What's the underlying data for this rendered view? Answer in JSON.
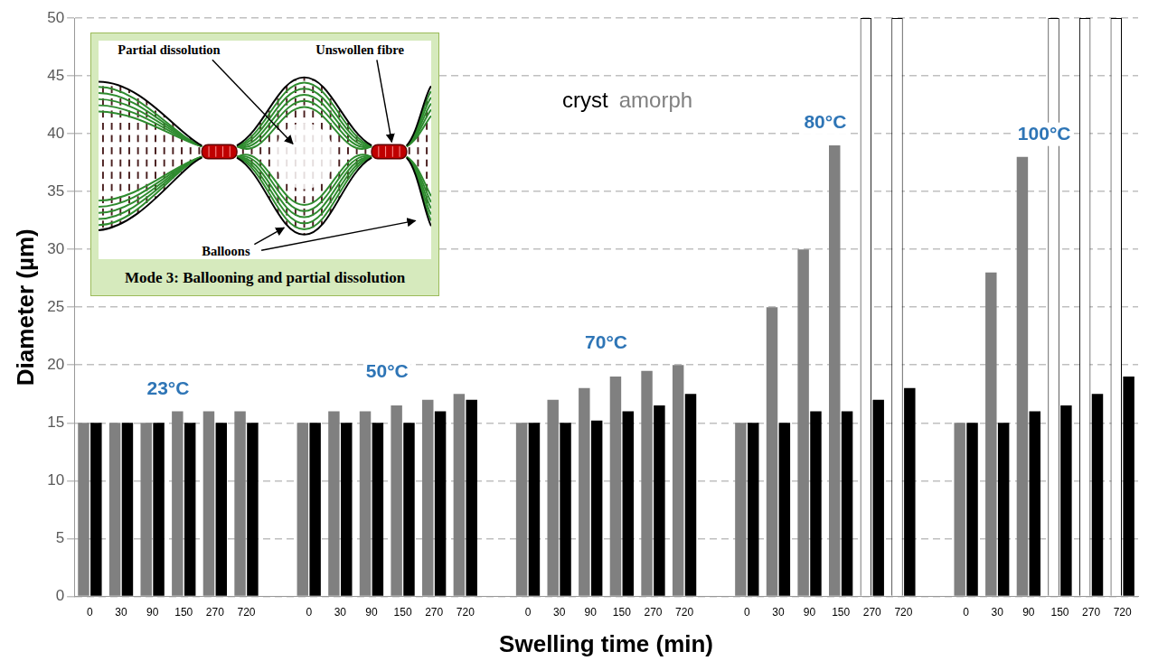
{
  "chart_data": {
    "type": "bar",
    "x_label": "Swelling time (min)",
    "y_label": "Diameter (µm)",
    "categories": [
      "0",
      "30",
      "90",
      "150",
      "270",
      "720",
      null,
      "0",
      "30",
      "90",
      "150",
      "270",
      "720",
      null,
      "0",
      "30",
      "90",
      "150",
      "270",
      "720",
      null,
      "0",
      "30",
      "90",
      "150",
      "270",
      "720",
      null,
      "0",
      "30",
      "90",
      "150",
      "270",
      "720"
    ],
    "groups": [
      "23°C",
      "50°C",
      "70°C",
      "80°C",
      "100°C"
    ],
    "series": [
      {
        "name": "cryst",
        "color": "#000000",
        "values": [
          15,
          15,
          15,
          15,
          15,
          15,
          null,
          15,
          15,
          15,
          15,
          16,
          17,
          null,
          15,
          15,
          15.2,
          16,
          16.5,
          17.5,
          null,
          15,
          15,
          16,
          16,
          17,
          18,
          null,
          15,
          15,
          16,
          16.5,
          17.5,
          19
        ]
      },
      {
        "name": "amorph",
        "color": "#808080",
        "colors": [
          "#808080",
          "#808080",
          "#808080",
          "#808080",
          "#808080",
          "#808080",
          "#808080",
          "#808080",
          "#808080",
          "#808080",
          "#808080",
          "#808080",
          "#808080",
          "#808080",
          "#808080",
          "#808080",
          "#808080",
          "#808080",
          "#808080",
          "#808080",
          "#808080",
          "#808080",
          "#808080",
          "#808080",
          "#808080",
          "#ffffff",
          "#ffffff",
          "#808080",
          "#808080",
          "#808080",
          "#808080",
          "#ffffff",
          "#ffffff",
          "#ffffff"
        ],
        "values": [
          15,
          15,
          15,
          16,
          16,
          16,
          null,
          15,
          16,
          16,
          16.5,
          17,
          17.5,
          null,
          15,
          17,
          18,
          19,
          19.5,
          20,
          null,
          15,
          25,
          30,
          39,
          50,
          50,
          null,
          15,
          28,
          38,
          50,
          50,
          50
        ]
      }
    ],
    "legend": "top",
    "ylim": [
      0,
      50
    ],
    "yticks": [
      0,
      5,
      10,
      15,
      20,
      25,
      30,
      35,
      40,
      45,
      50
    ],
    "grid": true,
    "annotations": [
      "Partial dissolution",
      "Unswollen fibre",
      "Balloons",
      "Mode 3: Ballooning and partial dissolution"
    ]
  }
}
